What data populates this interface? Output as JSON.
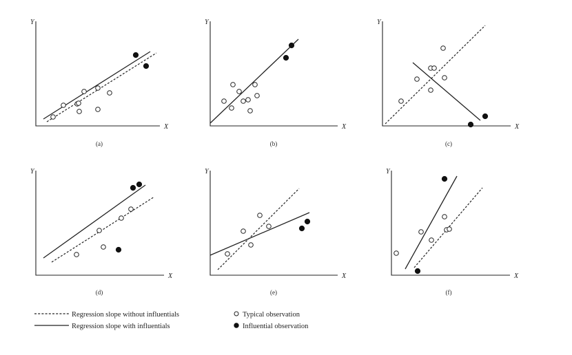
{
  "figure": {
    "axis_labels": {
      "y": "Y",
      "x": "X"
    },
    "line_styles": {
      "without_influentials": "dashed",
      "with_influentials": "solid"
    },
    "marker_styles": {
      "typical": "hollow-circle",
      "influential": "filled-circle"
    },
    "panels": [
      {
        "caption": "(a)",
        "typical_points": [
          [
            25,
            13
          ],
          [
            40,
            30
          ],
          [
            60,
            32
          ],
          [
            62,
            33
          ],
          [
            63,
            21
          ],
          [
            70,
            50
          ],
          [
            90,
            24
          ],
          [
            90,
            55
          ],
          [
            107,
            48
          ]
        ],
        "influential_points": [
          [
            145,
            103
          ],
          [
            160,
            87
          ]
        ],
        "regression_without": [
          [
            16,
            6
          ],
          [
            175,
            106
          ]
        ],
        "regression_with": [
          [
            11,
            10
          ],
          [
            166,
            108
          ]
        ]
      },
      {
        "caption": "(b)",
        "typical_points": [
          [
            20,
            36
          ],
          [
            31,
            26
          ],
          [
            33,
            60
          ],
          [
            42,
            50
          ],
          [
            48,
            36
          ],
          [
            55,
            38
          ],
          [
            58,
            22
          ],
          [
            65,
            60
          ],
          [
            68,
            44
          ]
        ],
        "influential_points": [
          [
            110,
            99
          ],
          [
            118,
            117
          ]
        ],
        "regression_with": [
          [
            0,
            4
          ],
          [
            128,
            126
          ]
        ]
      },
      {
        "caption": "(c)",
        "typical_points": [
          [
            27,
            36
          ],
          [
            50,
            68
          ],
          [
            70,
            52
          ],
          [
            70,
            84
          ],
          [
            75,
            84
          ],
          [
            88,
            113
          ],
          [
            90,
            70
          ]
        ],
        "influential_points": [
          [
            128,
            2
          ],
          [
            149,
            14
          ]
        ],
        "regression_without": [
          [
            4,
            3
          ],
          [
            149,
            146
          ]
        ],
        "regression_with": [
          [
            44,
            92
          ],
          [
            142,
            8
          ]
        ]
      },
      {
        "caption": "(d)",
        "typical_points": [
          [
            59,
            30
          ],
          [
            92,
            65
          ],
          [
            98,
            41
          ],
          [
            124,
            83
          ],
          [
            138,
            96
          ]
        ],
        "influential_points": [
          [
            120,
            37
          ],
          [
            141,
            127
          ],
          [
            150,
            132
          ]
        ],
        "regression_without": [
          [
            23,
            19
          ],
          [
            172,
            114
          ]
        ],
        "regression_with": [
          [
            11,
            25
          ],
          [
            159,
            131
          ]
        ]
      },
      {
        "caption": "(e)",
        "typical_points": [
          [
            25,
            31
          ],
          [
            48,
            64
          ],
          [
            59,
            44
          ],
          [
            72,
            87
          ],
          [
            85,
            71
          ]
        ],
        "influential_points": [
          [
            133,
            68
          ],
          [
            141,
            78
          ]
        ],
        "regression_without": [
          [
            11,
            8
          ],
          [
            129,
            126
          ]
        ],
        "regression_with": [
          [
            0,
            29
          ],
          [
            144,
            91
          ]
        ]
      },
      {
        "caption": "(f)",
        "typical_points": [
          [
            7,
            32
          ],
          [
            43,
            63
          ],
          [
            58,
            51
          ],
          [
            77,
            85
          ],
          [
            80,
            66
          ],
          [
            84,
            67
          ]
        ],
        "influential_points": [
          [
            38,
            6
          ],
          [
            77,
            140
          ]
        ],
        "regression_without": [
          [
            33,
            11
          ],
          [
            132,
            127
          ]
        ],
        "regression_with": [
          [
            20,
            9
          ],
          [
            95,
            144
          ]
        ]
      }
    ]
  },
  "legend": {
    "without_influentials": "Regression slope without influentials",
    "with_influentials": "Regression slope with influentials",
    "typical": "Typical observation",
    "influential": "Influential observation"
  }
}
